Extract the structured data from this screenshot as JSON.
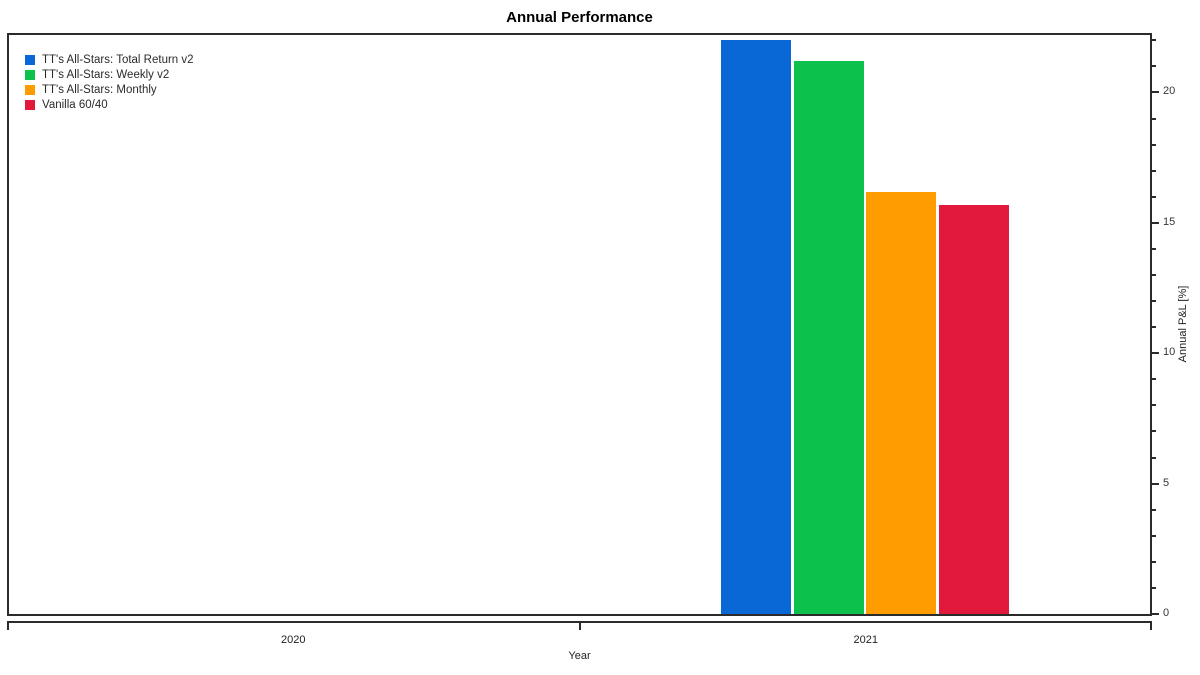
{
  "chart_data": {
    "type": "bar",
    "title": "Annual Performance",
    "xlabel": "Year",
    "ylabel": "Annual P&L [%]",
    "categories": [
      "2020",
      "2021"
    ],
    "series": [
      {
        "name": "TT's All-Stars: Total Return v2",
        "color": "#0a67d6",
        "values": [
          null,
          22.0
        ]
      },
      {
        "name": "TT's All-Stars: Weekly v2",
        "color": "#0dc24c",
        "values": [
          null,
          21.2
        ]
      },
      {
        "name": "TT's All-Stars: Monthly",
        "color": "#ff9c00",
        "values": [
          null,
          16.2
        ]
      },
      {
        "name": "Vanilla 60/40",
        "color": "#e2183d",
        "values": [
          null,
          15.7
        ]
      }
    ],
    "ylim": [
      0,
      22.2
    ],
    "yticks_major": [
      0,
      5,
      10,
      15,
      20
    ],
    "ytick_minor_step": 1,
    "grid": false,
    "legend_position": "top-left",
    "yaxis_side": "right"
  },
  "style": {
    "axis_color": "#2b2b2b",
    "tick_label_color": "#363636",
    "background": "#ffffff"
  }
}
